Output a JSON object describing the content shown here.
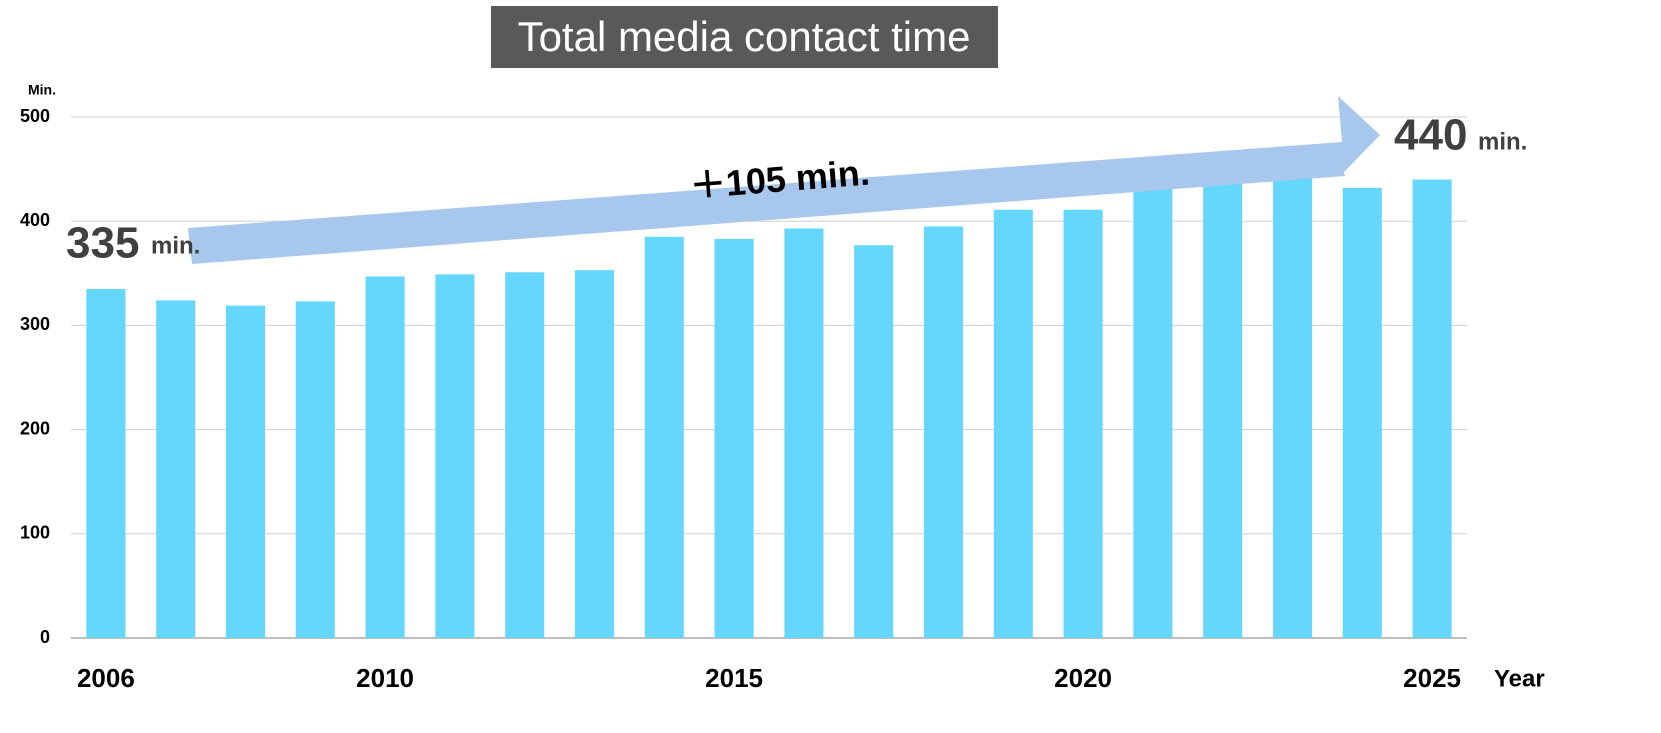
{
  "chart_data": {
    "type": "bar",
    "title": "Total media contact time",
    "y_axis_label": "Min.",
    "x_axis_label": "Year",
    "categories": [
      "2006",
      null,
      null,
      null,
      "2010",
      null,
      null,
      null,
      null,
      "2015",
      null,
      null,
      null,
      null,
      "2020",
      null,
      null,
      null,
      null,
      "2025"
    ],
    "values": [
      335,
      324,
      319,
      323,
      347,
      349,
      351,
      353,
      385,
      383,
      393,
      377,
      395,
      411,
      411,
      450,
      445,
      443,
      432,
      440
    ],
    "color": "#66d7fc",
    "ylim": [
      0,
      500
    ],
    "yticks": [
      0,
      100,
      200,
      300,
      400,
      500
    ],
    "grid": true,
    "annotations": {
      "start_value": "335",
      "start_unit": "min.",
      "end_value": "440",
      "end_unit": "min.",
      "change": "＋105 min."
    }
  }
}
